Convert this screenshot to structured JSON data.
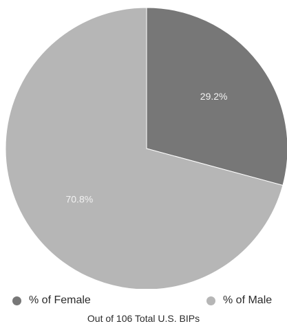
{
  "chart_data": {
    "type": "pie",
    "series": [
      {
        "name": "% of Female",
        "value": 29.2,
        "label": "29.2%",
        "color": "#777777"
      },
      {
        "name": "% of Male",
        "value": 70.8,
        "label": "70.8%",
        "color": "#b6b6b6"
      }
    ],
    "caption": "Out of 106 Total U.S. BIPs",
    "legend_placement": "bottom"
  }
}
